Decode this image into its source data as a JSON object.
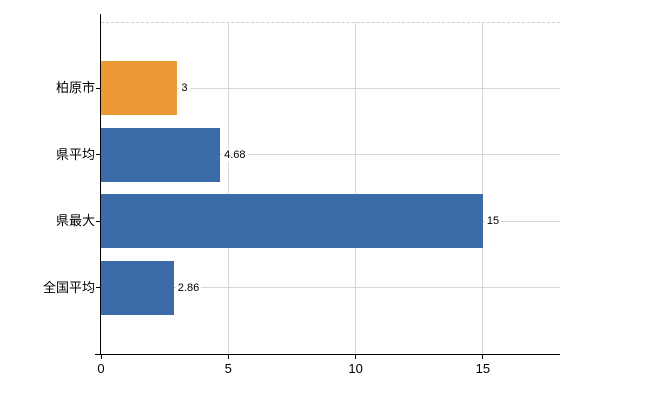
{
  "chart_data": {
    "type": "bar",
    "orientation": "horizontal",
    "title": "",
    "categories": [
      "柏原市",
      "県平均",
      "県最大",
      "全国平均"
    ],
    "values": [
      3,
      4.68,
      15,
      2.86
    ],
    "value_labels": [
      "3",
      "4.68",
      "15",
      "2.86"
    ],
    "bar_colors": [
      "#EC9A38",
      "#3B6CA9",
      "#3B6CA9",
      "#3B6CA9"
    ],
    "highlight_color": "#EC9A38",
    "base_color": "#3B6CA9",
    "x_ticks": [
      0,
      5,
      10,
      15
    ],
    "x_tick_labels": [
      "0",
      "5",
      "10",
      "15"
    ],
    "xlim": [
      0,
      18.03
    ],
    "grid": true,
    "gridline_color": "#d5dbd2",
    "axis_color": "#000000",
    "text_color": "#000000",
    "background_color": "#ffffff",
    "legend": "none"
  }
}
